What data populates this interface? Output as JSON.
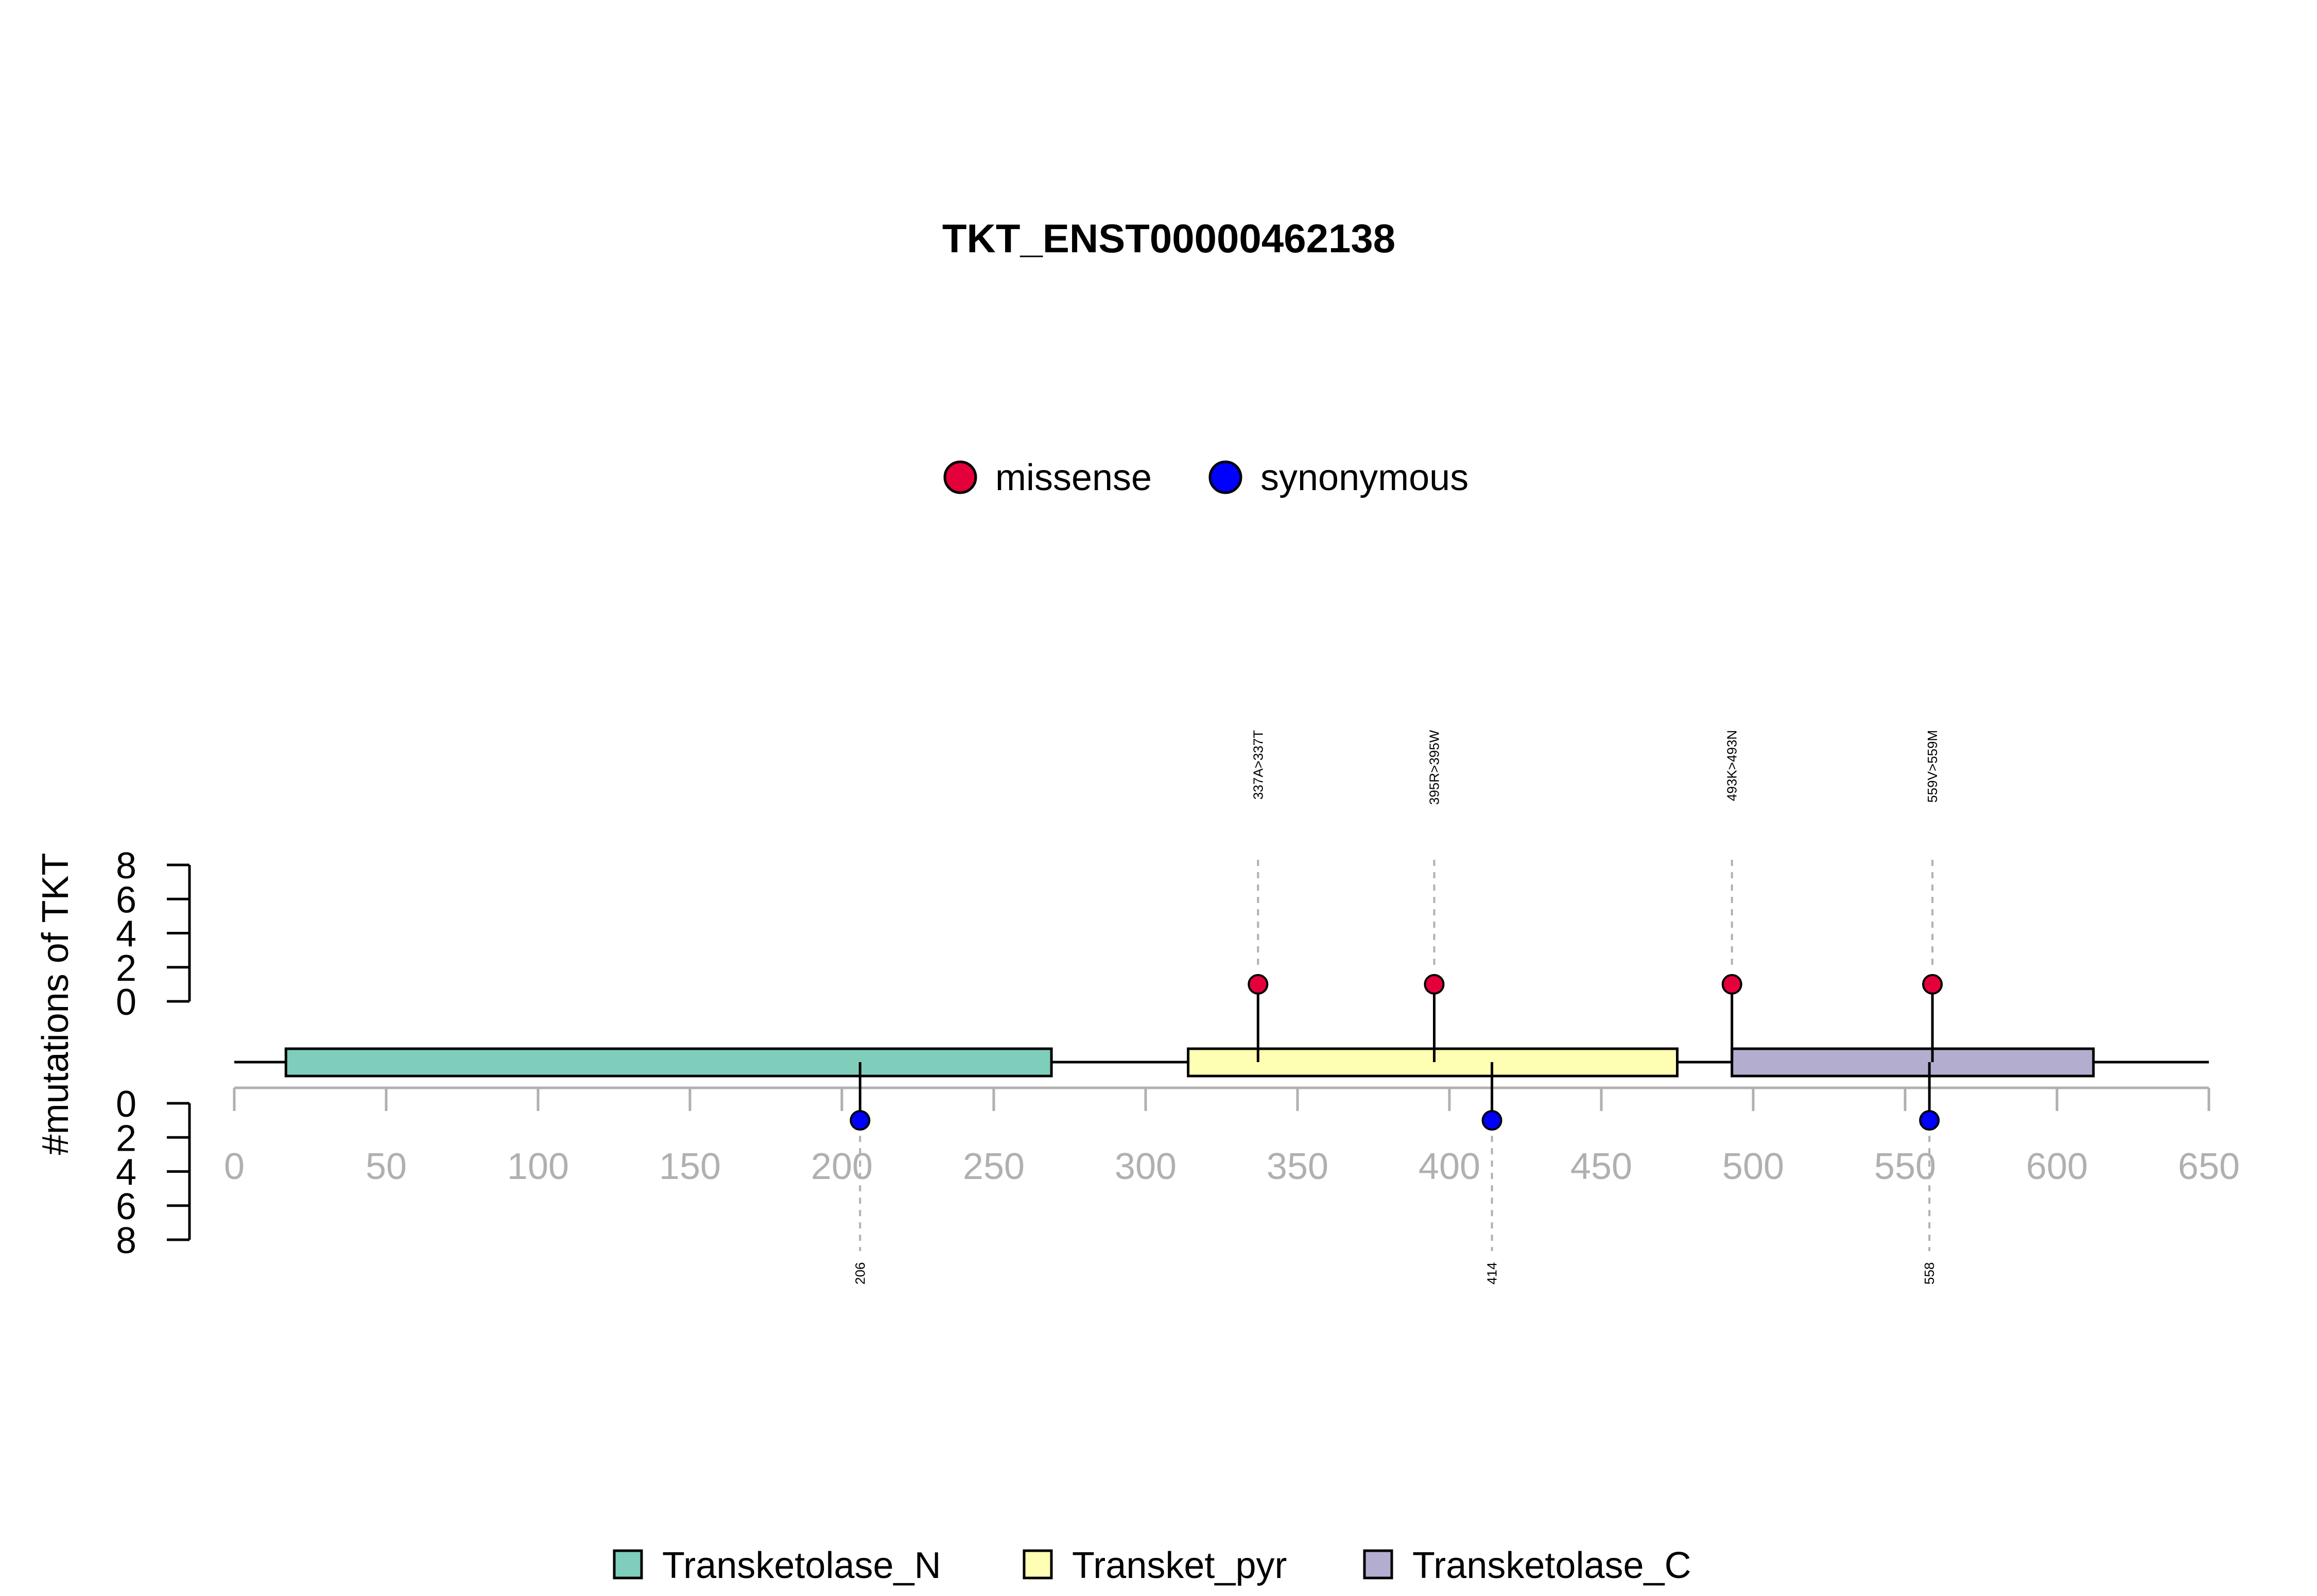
{
  "chart_data": {
    "type": "lollipop",
    "title": "TKT_ENST00000462138",
    "ylabel": "#mutations of TKT",
    "xlim": [
      0,
      650
    ],
    "x_ticks": [
      0,
      50,
      100,
      150,
      200,
      250,
      300,
      350,
      400,
      450,
      500,
      550,
      600,
      650
    ],
    "y_ticks": [
      0,
      2,
      4,
      6,
      8
    ],
    "ylim_upper": [
      0,
      8
    ],
    "ylim_lower": [
      0,
      8
    ],
    "protein_length": 650,
    "legend_mutations": [
      {
        "name": "missense",
        "color": "#e4003a"
      },
      {
        "name": "synonymous",
        "color": "#0000ff"
      }
    ],
    "domains": [
      {
        "name": "Transketolase_N",
        "start": 17,
        "end": 269,
        "color": "#7fcdbb"
      },
      {
        "name": "Transket_pyr",
        "start": 314,
        "end": 475,
        "color": "#ffffb3"
      },
      {
        "name": "Transketolase_C",
        "start": 493,
        "end": 612,
        "color": "#b3adcf"
      }
    ],
    "mutations_upper": [
      {
        "position": 337,
        "count": 1,
        "label": "337A>337T",
        "type": "missense"
      },
      {
        "position": 395,
        "count": 1,
        "label": "395R>395W",
        "type": "missense"
      },
      {
        "position": 493,
        "count": 1,
        "label": "493K>493N",
        "type": "missense"
      },
      {
        "position": 559,
        "count": 1,
        "label": "559V>559M",
        "type": "missense"
      }
    ],
    "mutations_lower": [
      {
        "position": 206,
        "count": 1,
        "label": "206",
        "type": "synonymous"
      },
      {
        "position": 414,
        "count": 1,
        "label": "414",
        "type": "synonymous"
      },
      {
        "position": 558,
        "count": 1,
        "label": "558",
        "type": "synonymous"
      }
    ]
  }
}
